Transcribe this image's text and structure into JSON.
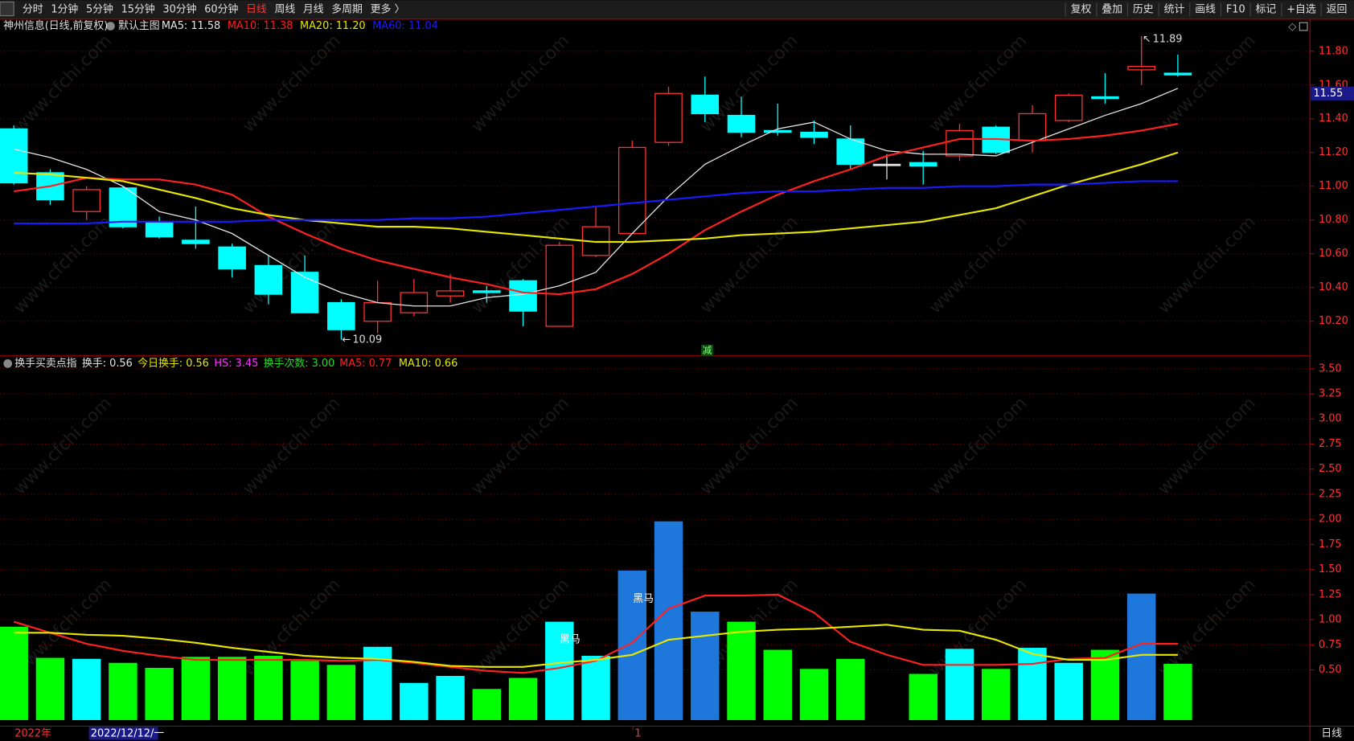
{
  "toolbar": {
    "left": [
      "分时",
      "1分钟",
      "5分钟",
      "15分钟",
      "30分钟",
      "60分钟",
      "日线",
      "周线",
      "月线",
      "多周期",
      "更多 〉"
    ],
    "selected_index": 6,
    "right": [
      "复权",
      "叠加",
      "历史",
      "统计",
      "画线",
      "F10",
      "标记",
      "+自选",
      "返回"
    ]
  },
  "watermark": "www.cfchi.com",
  "time_axis": {
    "year": "2022年",
    "crosshair_date": "2022/12/12/一",
    "month": "1",
    "period": "日线"
  },
  "chart_data": [
    {
      "type": "candlestick",
      "title": "神州信息(日线,前复权)",
      "subtitle": "默认主图",
      "up_color": "#ff3232",
      "down_color": "#00ffff",
      "flat_color": "#e0e0e0",
      "open": [
        11.34,
        11.08,
        10.85,
        10.99,
        10.79,
        10.68,
        10.64,
        10.53,
        10.49,
        10.31,
        10.2,
        10.25,
        10.35,
        10.38,
        10.44,
        10.17,
        10.59,
        10.72,
        11.26,
        11.54,
        11.42,
        11.33,
        11.32,
        11.28,
        11.13,
        11.14,
        11.18,
        11.35,
        11.27,
        11.39,
        11.53,
        11.69,
        11.67
      ],
      "high": [
        11.36,
        11.1,
        11.0,
        11.0,
        10.82,
        10.88,
        10.66,
        10.59,
        10.59,
        10.33,
        10.44,
        10.45,
        10.48,
        10.41,
        10.45,
        10.67,
        10.88,
        11.27,
        11.59,
        11.65,
        11.53,
        11.49,
        11.39,
        11.36,
        11.19,
        11.21,
        11.37,
        11.36,
        11.48,
        11.55,
        11.67,
        11.89,
        11.78
      ],
      "low": [
        11.01,
        10.89,
        10.8,
        10.75,
        10.69,
        10.63,
        10.46,
        10.3,
        10.25,
        10.09,
        10.13,
        10.23,
        10.31,
        10.31,
        10.17,
        10.17,
        10.58,
        10.72,
        11.24,
        11.38,
        11.29,
        11.3,
        11.25,
        11.1,
        11.04,
        11.01,
        11.15,
        11.19,
        11.2,
        11.38,
        11.49,
        11.6,
        11.65
      ],
      "close": [
        11.02,
        10.92,
        10.98,
        10.76,
        10.7,
        10.66,
        10.51,
        10.36,
        10.25,
        10.15,
        10.31,
        10.37,
        10.38,
        10.37,
        10.26,
        10.65,
        10.76,
        11.23,
        11.55,
        11.43,
        11.32,
        11.32,
        11.29,
        11.13,
        11.13,
        11.12,
        11.33,
        11.2,
        11.43,
        11.54,
        11.52,
        11.71,
        11.66
      ],
      "series": [
        {
          "name": "MA5: 11.58",
          "color": "#e6e6e6",
          "values": [
            11.22,
            11.17,
            11.1,
            11.0,
            10.85,
            10.8,
            10.72,
            10.59,
            10.46,
            10.37,
            10.31,
            10.29,
            10.29,
            10.34,
            10.36,
            10.41,
            10.49,
            10.72,
            10.94,
            11.13,
            11.24,
            11.34,
            11.38,
            11.28,
            11.21,
            11.19,
            11.19,
            11.18,
            11.26,
            11.34,
            11.42,
            11.49,
            11.58
          ]
        },
        {
          "name": "MA10: 11.38",
          "color": "#ff2020",
          "values": [
            10.97,
            11.0,
            11.05,
            11.04,
            11.04,
            11.01,
            10.95,
            10.82,
            10.72,
            10.63,
            10.56,
            10.51,
            10.46,
            10.42,
            10.37,
            10.36,
            10.39,
            10.48,
            10.6,
            10.74,
            10.85,
            10.95,
            11.03,
            11.1,
            11.18,
            11.23,
            11.28,
            11.28,
            11.27,
            11.28,
            11.3,
            11.33,
            11.37
          ]
        },
        {
          "name": "MA20: 11.20",
          "color": "#e6e600",
          "values": [
            11.08,
            11.07,
            11.05,
            11.03,
            10.98,
            10.93,
            10.87,
            10.83,
            10.8,
            10.78,
            10.76,
            10.76,
            10.75,
            10.73,
            10.71,
            10.69,
            10.67,
            10.67,
            10.68,
            10.69,
            10.71,
            10.72,
            10.73,
            10.75,
            10.77,
            10.79,
            10.83,
            10.87,
            10.94,
            11.01,
            11.07,
            11.13,
            11.2
          ]
        },
        {
          "name": "MA60: 11.04",
          "color": "#1a1aff",
          "values": [
            10.78,
            10.78,
            10.78,
            10.79,
            10.79,
            10.79,
            10.79,
            10.8,
            10.8,
            10.8,
            10.8,
            10.81,
            10.81,
            10.82,
            10.84,
            10.86,
            10.88,
            10.9,
            10.92,
            10.94,
            10.96,
            10.97,
            10.97,
            10.98,
            10.99,
            10.99,
            11.0,
            11.0,
            11.01,
            11.01,
            11.02,
            11.03,
            11.03
          ]
        }
      ],
      "annotations": [
        {
          "label": "11.89",
          "value": 11.89
        },
        {
          "label": "10.09",
          "value": 10.09
        }
      ],
      "marker": "减",
      "price_tag": {
        "value": 11.55,
        "label": "11.55"
      },
      "ylim": [
        10.0,
        11.99
      ],
      "yticks": [
        {
          "value": 10.2,
          "label": "10.20"
        },
        {
          "value": 10.4,
          "label": "10.40"
        },
        {
          "value": 10.6,
          "label": "10.60"
        },
        {
          "value": 10.8,
          "label": "10.80"
        },
        {
          "value": 11.0,
          "label": "11.00"
        },
        {
          "value": 11.2,
          "label": "11.20"
        },
        {
          "value": 11.4,
          "label": "11.40"
        },
        {
          "value": 11.6,
          "label": "11.60"
        },
        {
          "value": 11.8,
          "label": "11.80"
        }
      ],
      "grid": true
    },
    {
      "type": "bar",
      "title": "换手买卖点指",
      "info": [
        {
          "text": "换手: 0.56",
          "color": "#e6e6e6"
        },
        {
          "text": "今日换手: 0.56",
          "color": "#e6e600"
        },
        {
          "text": "HS: 3.45",
          "color": "#ff33ff"
        },
        {
          "text": "换手次数: 3.00",
          "color": "#22dd22"
        }
      ],
      "values": [
        0.93,
        0.62,
        0.61,
        0.57,
        0.52,
        0.63,
        0.63,
        0.64,
        0.59,
        0.55,
        0.73,
        0.37,
        0.44,
        0.31,
        0.42,
        0.98,
        0.64,
        1.49,
        1.98,
        1.08,
        0.98,
        0.7,
        0.51,
        0.61,
        null,
        0.46,
        0.71,
        0.51,
        0.72,
        0.57,
        0.7,
        1.26,
        0.56
      ],
      "colors": [
        "#00ff00",
        "#00ff00",
        "#00ffff",
        "#00ff00",
        "#00ff00",
        "#00ff00",
        "#00ff00",
        "#00ff00",
        "#00ff00",
        "#00ff00",
        "#00ffff",
        "#00ffff",
        "#00ffff",
        "#00ff00",
        "#00ff00",
        "#00ffff",
        "#00ffff",
        "#1e78dc",
        "#1e78dc",
        "#1e78dc",
        "#00ff00",
        "#00ff00",
        "#00ff00",
        "#00ff00",
        "#00ff00",
        "#00ff00",
        "#00ffff",
        "#00ff00",
        "#00ffff",
        "#00ffff",
        "#00ff00",
        "#1e78dc",
        "#00ff00"
      ],
      "series": [
        {
          "name": "MA5: 0.77",
          "color": "#ff2020",
          "values": [
            0.98,
            0.87,
            0.76,
            0.69,
            0.64,
            0.6,
            0.6,
            0.6,
            0.6,
            0.59,
            0.6,
            0.57,
            0.53,
            0.49,
            0.47,
            0.52,
            0.59,
            0.77,
            1.11,
            1.24,
            1.24,
            1.25,
            1.07,
            0.78,
            0.65,
            0.55,
            0.55,
            0.55,
            0.56,
            0.61,
            0.62,
            0.76,
            0.76
          ]
        },
        {
          "name": "MA10: 0.66",
          "color": "#e6e600",
          "values": [
            0.87,
            0.87,
            0.85,
            0.84,
            0.81,
            0.77,
            0.72,
            0.68,
            0.64,
            0.62,
            0.61,
            0.58,
            0.54,
            0.53,
            0.53,
            0.57,
            0.6,
            0.65,
            0.8,
            0.84,
            0.88,
            0.9,
            0.91,
            0.93,
            0.95,
            0.9,
            0.89,
            0.8,
            0.66,
            0.6,
            0.6,
            0.65,
            0.65
          ]
        }
      ],
      "annotations": [
        "黑马",
        "黑马"
      ],
      "ylim": [
        0,
        3.62
      ],
      "yticks": [
        {
          "value": 0.5,
          "label": "0.50"
        },
        0.75,
        {
          "value": 1,
          "label": "1.00"
        },
        1.25,
        {
          "value": 1.5,
          "label": "1.50"
        },
        1.75,
        {
          "value": 2,
          "label": "2.00"
        },
        2.25,
        {
          "value": 2.5,
          "label": "2.50"
        },
        2.75,
        {
          "value": 3,
          "label": "3.00"
        },
        3.25,
        {
          "value": 3.5,
          "label": "3.50"
        }
      ],
      "grid": true
    }
  ]
}
